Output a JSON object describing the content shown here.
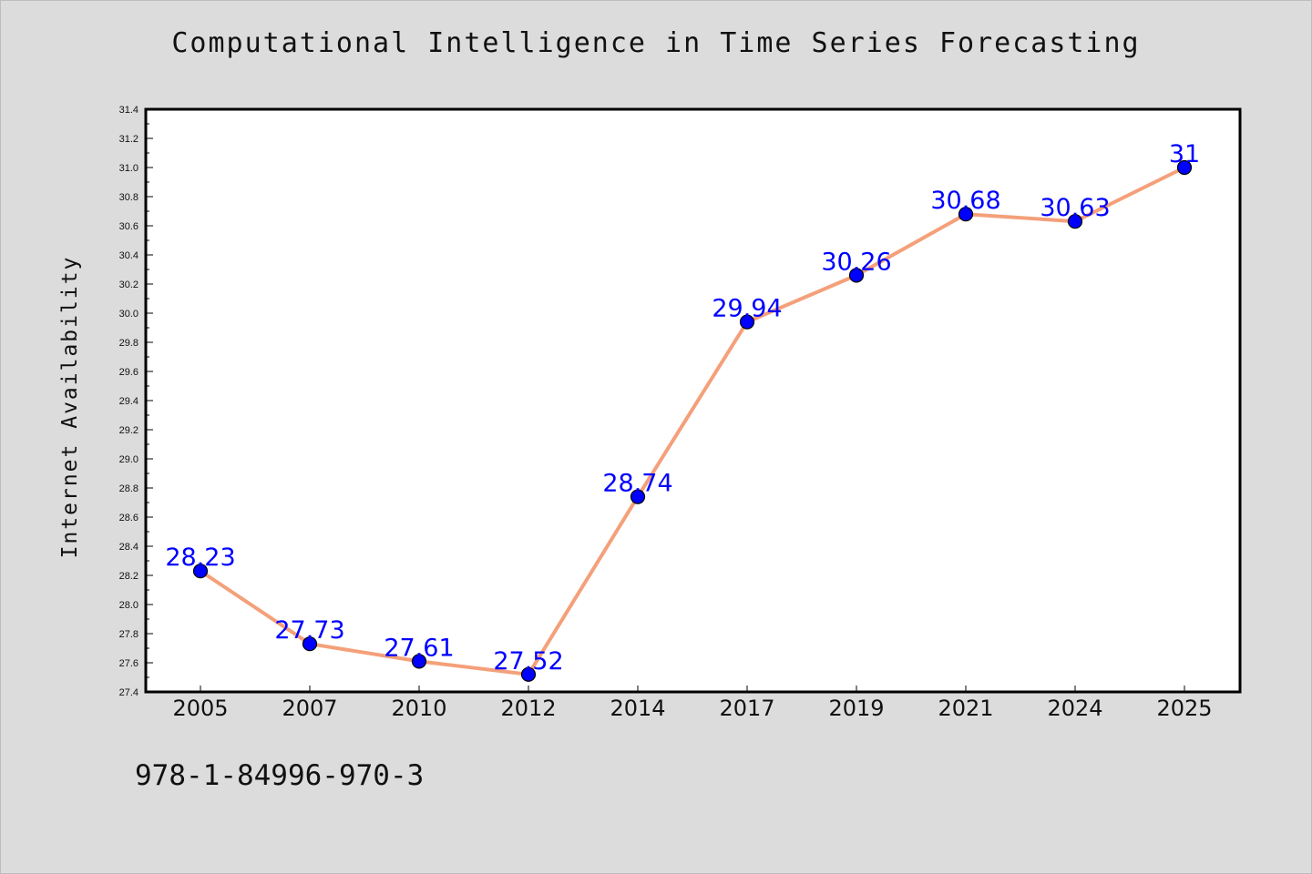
{
  "title": "Computational Intelligence in Time Series Forecasting",
  "footnote": "978-1-84996-970-3",
  "colors": {
    "background": "#dcdcdc",
    "plot_background": "#ffffff",
    "line": "#f4a07a",
    "marker": "#0000ff",
    "data_label": "#0000ff"
  },
  "chart_data": {
    "type": "line",
    "title": "Computational Intelligence in Time Series Forecasting",
    "xlabel": "",
    "ylabel": "Internet Availability",
    "categories": [
      "2005",
      "2007",
      "2010",
      "2012",
      "2014",
      "2017",
      "2019",
      "2021",
      "2024",
      "2025"
    ],
    "series": [
      {
        "values": [
          28.23,
          27.73,
          27.61,
          27.52,
          28.74,
          29.94,
          30.26,
          30.68,
          30.63,
          31
        ],
        "labels": [
          "28.23",
          "27.73",
          "27.61",
          "27.52",
          "28.74",
          "29.94",
          "30.26",
          "30.68",
          "30.63",
          "31"
        ]
      }
    ],
    "ylim": [
      27.4,
      31.4
    ],
    "yticks": [
      "27.4",
      "27.6",
      "27.8",
      "28.0",
      "28.2",
      "28.4",
      "28.6",
      "28.8",
      "29.0",
      "29.2",
      "29.4",
      "29.6",
      "29.8",
      "30.0",
      "30.2",
      "30.4",
      "30.6",
      "30.8",
      "31.0",
      "31.2",
      "31.4"
    ],
    "grid": false,
    "legend": "none"
  }
}
